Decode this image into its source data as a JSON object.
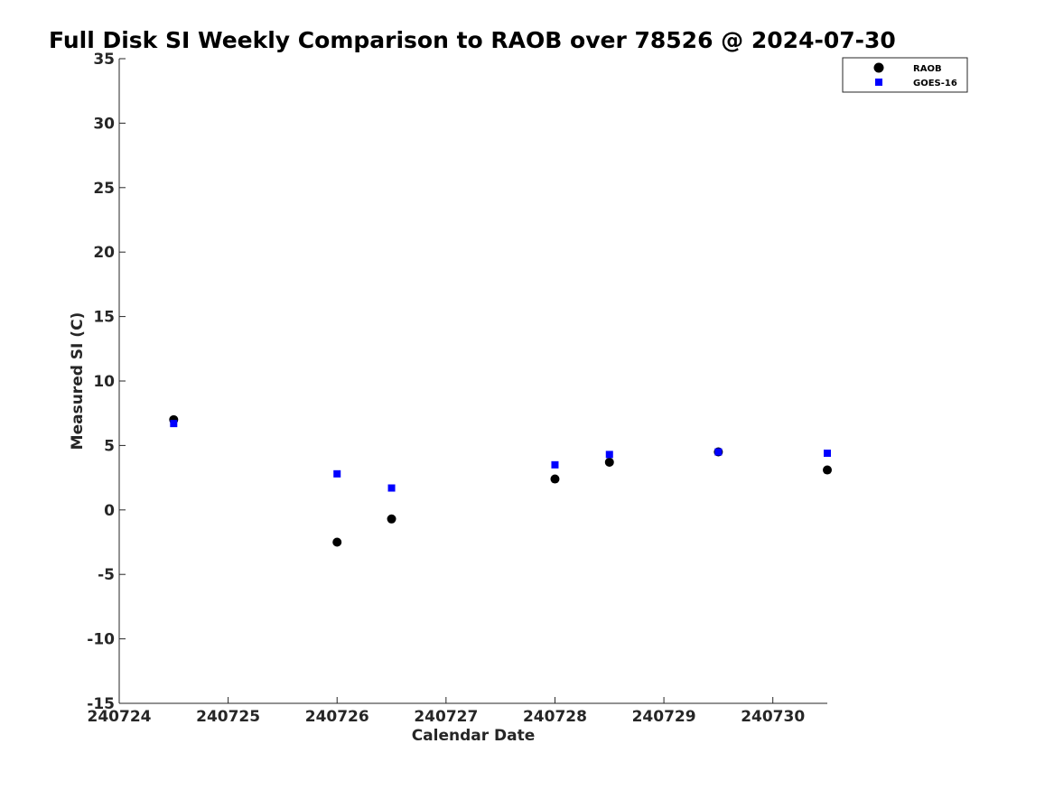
{
  "chart_data": {
    "type": "scatter",
    "title": "Full Disk SI Weekly Comparison to RAOB over 78526 @ 2024-07-30",
    "xlabel": "Calendar Date",
    "ylabel": "Measured SI (C)",
    "xlim": [
      "2024-07-24",
      "2024-07-30 12:00"
    ],
    "ylim": [
      -15,
      35
    ],
    "x_ticks": [
      {
        "value": "2024-07-24",
        "label": "240724"
      },
      {
        "value": "2024-07-25",
        "label": "240725"
      },
      {
        "value": "2024-07-26",
        "label": "240726"
      },
      {
        "value": "2024-07-27",
        "label": "240727"
      },
      {
        "value": "2024-07-28",
        "label": "240728"
      },
      {
        "value": "2024-07-29",
        "label": "240729"
      },
      {
        "value": "2024-07-30",
        "label": "240730"
      }
    ],
    "y_ticks": [
      -15,
      -10,
      -5,
      0,
      5,
      10,
      15,
      20,
      25,
      30,
      35
    ],
    "grid": false,
    "legend_position": "top-right",
    "series": [
      {
        "name": "RAOB",
        "marker": "circle",
        "color": "#000000",
        "points": [
          {
            "x": "2024-07-24 12:00",
            "y": 7.0
          },
          {
            "x": "2024-07-26 00:00",
            "y": -2.5
          },
          {
            "x": "2024-07-26 12:00",
            "y": -0.7
          },
          {
            "x": "2024-07-28 00:00",
            "y": 2.4
          },
          {
            "x": "2024-07-28 12:00",
            "y": 3.7
          },
          {
            "x": "2024-07-29 12:00",
            "y": 4.5
          },
          {
            "x": "2024-07-30 12:00",
            "y": 3.1
          }
        ]
      },
      {
        "name": "GOES-16",
        "marker": "square",
        "color": "#0000ff",
        "points": [
          {
            "x": "2024-07-24 12:00",
            "y": 6.7
          },
          {
            "x": "2024-07-26 00:00",
            "y": 2.8
          },
          {
            "x": "2024-07-26 12:00",
            "y": 1.7
          },
          {
            "x": "2024-07-28 00:00",
            "y": 3.5
          },
          {
            "x": "2024-07-28 12:00",
            "y": 4.3
          },
          {
            "x": "2024-07-29 12:00",
            "y": 4.5
          },
          {
            "x": "2024-07-30 12:00",
            "y": 4.4
          }
        ]
      }
    ]
  }
}
